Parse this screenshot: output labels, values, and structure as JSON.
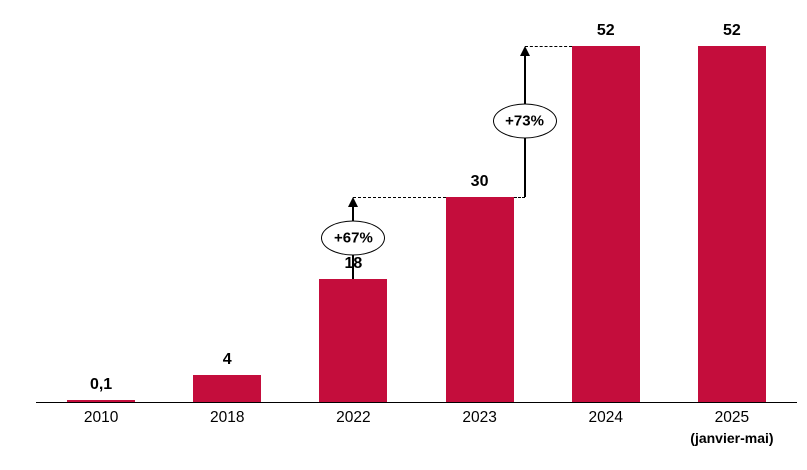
{
  "chart_data": {
    "type": "bar",
    "title": "",
    "categories": [
      "2010",
      "2018",
      "2022",
      "2023",
      "2024",
      "2025"
    ],
    "category_sublabels": [
      "",
      "",
      "",
      "",
      "",
      "(janvier-mai)"
    ],
    "values": [
      0.1,
      4,
      18,
      30,
      52,
      52
    ],
    "value_labels": [
      "0,1",
      "4",
      "18",
      "30",
      "52",
      "52"
    ],
    "bar_color": "#C40D3C",
    "label_color": "#000000",
    "axis_color": "#000000",
    "ylim": [
      0,
      57
    ],
    "grid": false,
    "legend": false,
    "annotations": [
      {
        "label": "+67%",
        "from_index": 2,
        "to_index": 3,
        "from_value": 18,
        "to_value": 30,
        "arrow_position": "bar-center"
      },
      {
        "label": "+73%",
        "from_index": 3,
        "to_index": 4,
        "from_value": 30,
        "to_value": 52,
        "arrow_position": "right-of-bar"
      }
    ]
  }
}
